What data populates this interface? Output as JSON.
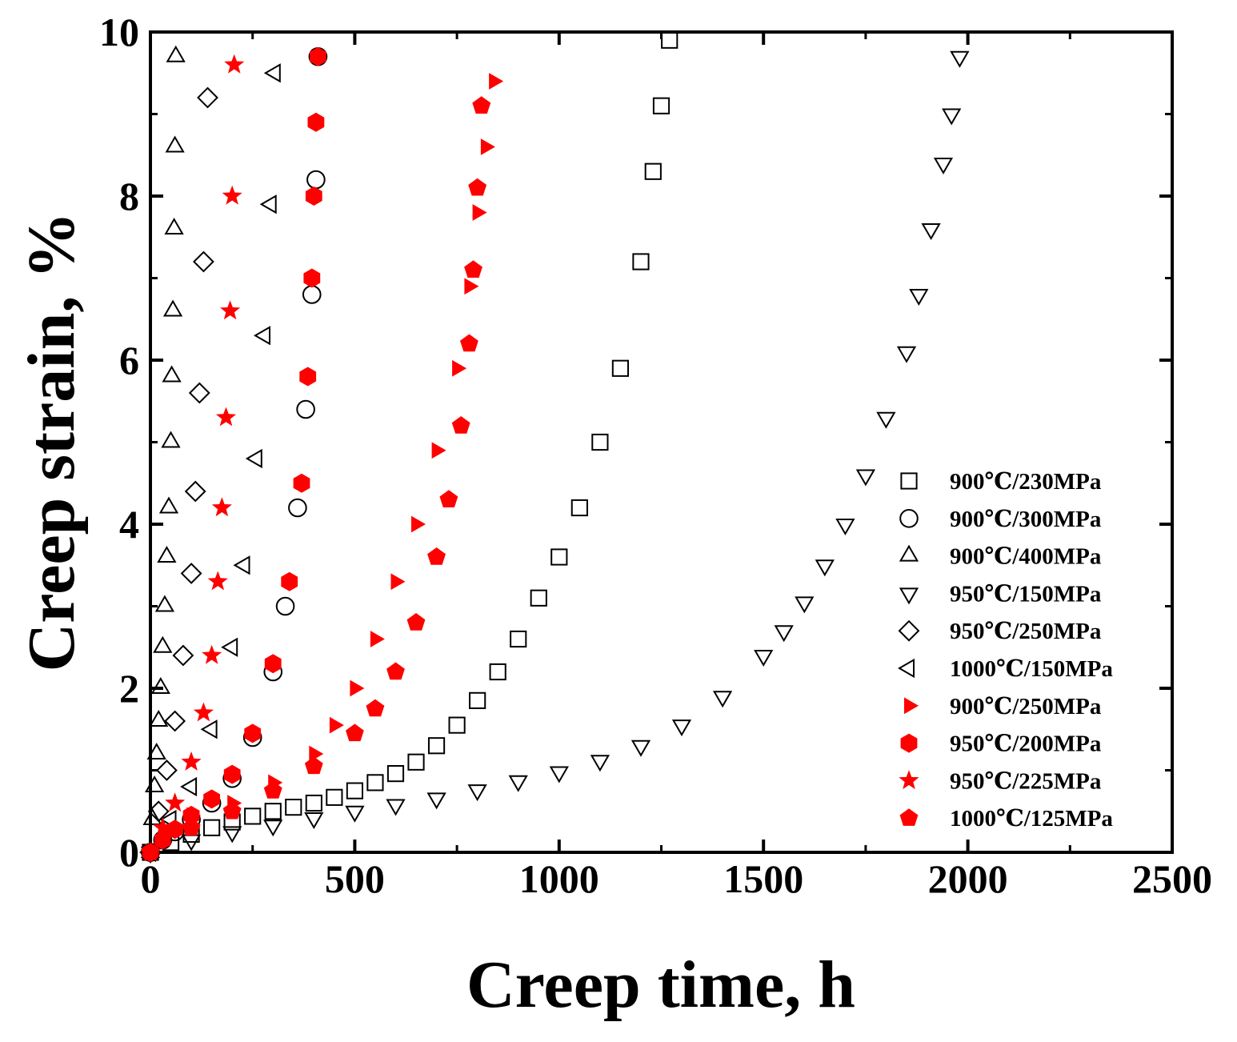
{
  "chart_data": {
    "type": "scatter",
    "title": "",
    "xlabel": "Creep time, h",
    "ylabel": "Creep strain, %",
    "xlim": [
      0,
      2500
    ],
    "ylim": [
      0,
      10
    ],
    "xticks": [
      0,
      500,
      1000,
      1500,
      2000,
      2500
    ],
    "yticks": [
      0,
      2,
      4,
      6,
      8,
      10
    ],
    "xtick_labels": [
      "0",
      "500",
      "1000",
      "1500",
      "2000",
      "2500"
    ],
    "ytick_labels": [
      "0",
      "2",
      "4",
      "6",
      "8",
      "10"
    ],
    "legend_position": "lower-right",
    "series": [
      {
        "name": "900℃/230MPa",
        "marker": "square",
        "filled": false,
        "color": "#000000",
        "x": [
          0,
          50,
          100,
          150,
          200,
          250,
          300,
          350,
          400,
          450,
          500,
          550,
          600,
          650,
          700,
          750,
          800,
          850,
          900,
          950,
          1000,
          1050,
          1100,
          1150,
          1200,
          1230,
          1250,
          1270
        ],
        "y": [
          0,
          0.12,
          0.22,
          0.3,
          0.37,
          0.44,
          0.5,
          0.55,
          0.6,
          0.67,
          0.75,
          0.85,
          0.96,
          1.1,
          1.3,
          1.55,
          1.85,
          2.2,
          2.6,
          3.1,
          3.6,
          4.2,
          5.0,
          5.9,
          7.2,
          8.3,
          9.1,
          9.9
        ]
      },
      {
        "name": "900℃/300MPa",
        "marker": "circle",
        "filled": false,
        "color": "#000000",
        "x": [
          0,
          30,
          60,
          100,
          150,
          200,
          250,
          300,
          330,
          360,
          380,
          395,
          405,
          410
        ],
        "y": [
          0,
          0.15,
          0.25,
          0.4,
          0.6,
          0.9,
          1.4,
          2.2,
          3.0,
          4.2,
          5.4,
          6.8,
          8.2,
          9.7
        ]
      },
      {
        "name": "900℃/400MPa",
        "marker": "triangle-up",
        "filled": false,
        "color": "#000000",
        "x": [
          0,
          5,
          10,
          15,
          20,
          25,
          30,
          35,
          40,
          45,
          50,
          52,
          55,
          58,
          60,
          62
        ],
        "y": [
          0,
          0.4,
          0.8,
          1.2,
          1.6,
          2.0,
          2.5,
          3.0,
          3.6,
          4.2,
          5.0,
          5.8,
          6.6,
          7.6,
          8.6,
          9.7
        ]
      },
      {
        "name": "950℃/150MPa",
        "marker": "triangle-down",
        "filled": false,
        "color": "#000000",
        "x": [
          0,
          100,
          200,
          300,
          400,
          500,
          600,
          700,
          800,
          900,
          1000,
          1100,
          1200,
          1300,
          1400,
          1500,
          1550,
          1600,
          1650,
          1700,
          1750,
          1800,
          1850,
          1880,
          1910,
          1940,
          1960,
          1980
        ],
        "y": [
          0,
          0.15,
          0.25,
          0.33,
          0.42,
          0.5,
          0.58,
          0.66,
          0.76,
          0.87,
          0.98,
          1.12,
          1.3,
          1.55,
          1.9,
          2.4,
          2.7,
          3.05,
          3.5,
          4.0,
          4.6,
          5.3,
          6.1,
          6.8,
          7.6,
          8.4,
          9.0,
          9.7
        ]
      },
      {
        "name": "950℃/250MPa",
        "marker": "diamond",
        "filled": false,
        "color": "#000000",
        "x": [
          0,
          20,
          40,
          60,
          80,
          100,
          110,
          120,
          130,
          140
        ],
        "y": [
          0,
          0.5,
          1.0,
          1.6,
          2.4,
          3.4,
          4.4,
          5.6,
          7.2,
          9.2
        ]
      },
      {
        "name": "1000℃/150MPa",
        "marker": "triangle-left",
        "filled": false,
        "color": "#000000",
        "x": [
          0,
          50,
          100,
          150,
          200,
          230,
          260,
          280,
          295,
          305
        ],
        "y": [
          0,
          0.4,
          0.8,
          1.5,
          2.5,
          3.5,
          4.8,
          6.3,
          7.9,
          9.5
        ]
      },
      {
        "name": "900℃/250MPa",
        "marker": "triangle-right",
        "filled": true,
        "color": "#ff0000",
        "x": [
          0,
          100,
          200,
          300,
          400,
          450,
          500,
          550,
          600,
          650,
          700,
          750,
          780,
          800,
          820,
          840
        ],
        "y": [
          0,
          0.45,
          0.6,
          0.85,
          1.2,
          1.55,
          2.0,
          2.6,
          3.3,
          4.0,
          4.9,
          5.9,
          6.9,
          7.8,
          8.6,
          9.4
        ]
      },
      {
        "name": "950℃/200MPa",
        "marker": "hexagon",
        "filled": true,
        "color": "#ff0000",
        "x": [
          0,
          30,
          60,
          100,
          150,
          200,
          250,
          300,
          340,
          370,
          385,
          395,
          400,
          405,
          410
        ],
        "y": [
          0,
          0.15,
          0.28,
          0.45,
          0.65,
          0.95,
          1.45,
          2.3,
          3.3,
          4.5,
          5.8,
          7.0,
          8.0,
          8.9,
          9.7
        ]
      },
      {
        "name": "950℃/225MPa",
        "marker": "star",
        "filled": true,
        "color": "#ff0000",
        "x": [
          0,
          30,
          60,
          100,
          130,
          150,
          165,
          175,
          185,
          195,
          200,
          205
        ],
        "y": [
          0,
          0.3,
          0.6,
          1.1,
          1.7,
          2.4,
          3.3,
          4.2,
          5.3,
          6.6,
          8.0,
          9.6
        ]
      },
      {
        "name": "1000℃/125MPa",
        "marker": "pentagon",
        "filled": true,
        "color": "#ff0000",
        "x": [
          0,
          100,
          200,
          300,
          400,
          500,
          550,
          600,
          650,
          700,
          730,
          760,
          780,
          790,
          800,
          810
        ],
        "y": [
          0,
          0.3,
          0.5,
          0.75,
          1.05,
          1.45,
          1.75,
          2.2,
          2.8,
          3.6,
          4.3,
          5.2,
          6.2,
          7.1,
          8.1,
          9.1
        ]
      }
    ]
  }
}
